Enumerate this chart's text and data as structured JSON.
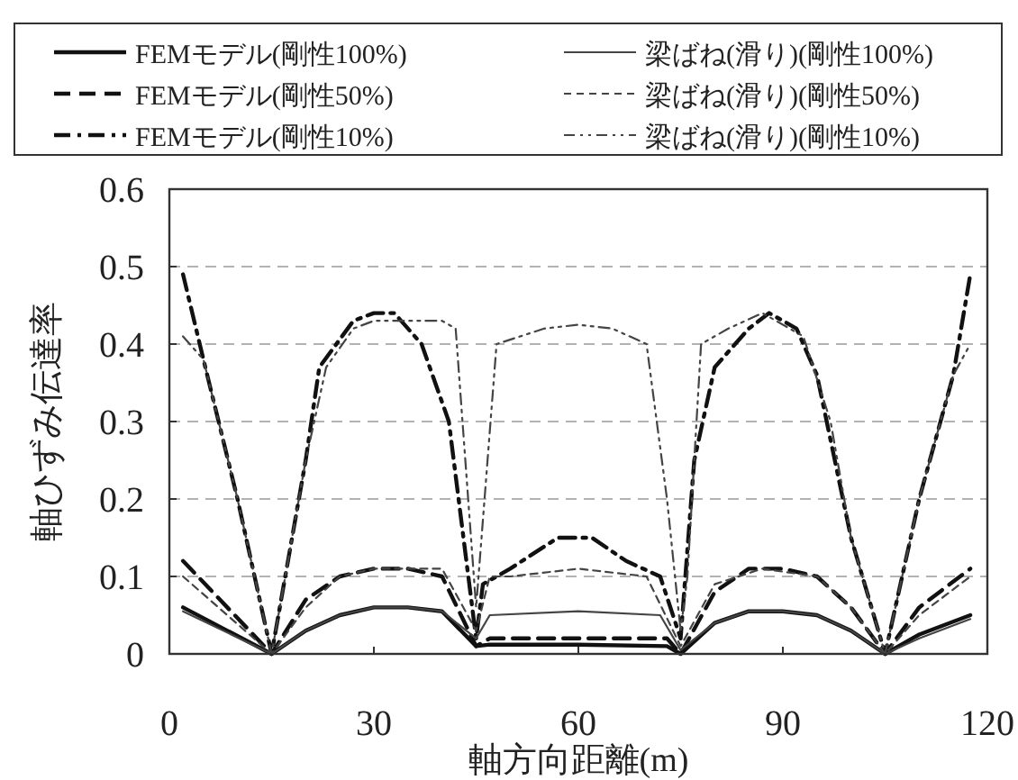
{
  "chart_data": {
    "type": "line",
    "xlabel": "軸方向距離(m)",
    "ylabel": "軸ひずみ伝達率",
    "xlim": [
      0,
      120
    ],
    "ylim": [
      0,
      0.6
    ],
    "xticks": [
      0,
      30,
      60,
      90,
      120
    ],
    "yticks": [
      {
        "value": 0,
        "label": "0"
      },
      0.1,
      0.2,
      0.3,
      0.4,
      0.5,
      0.6
    ],
    "grid": "y",
    "legend": "top",
    "series": [
      {
        "name": "FEMモデル(剛性100%)",
        "color": "#111111",
        "line_style": "solid",
        "x": [
          2,
          15,
          20,
          25,
          30,
          35,
          40,
          45,
          47,
          60,
          73,
          75,
          80,
          85,
          90,
          95,
          100,
          105,
          110,
          117.5
        ],
        "values": [
          0.06,
          0,
          0.03,
          0.05,
          0.06,
          0.06,
          0.055,
          0.01,
          0.012,
          0.012,
          0.01,
          0,
          0.04,
          0.055,
          0.055,
          0.05,
          0.03,
          0,
          0.025,
          0.05
        ]
      },
      {
        "name": "FEMモデル(剛性50%)",
        "color": "#111111",
        "line_style": "dashed",
        "x": [
          2,
          15,
          20,
          25,
          30,
          35,
          40,
          45,
          47,
          60,
          73,
          75,
          80,
          85,
          90,
          95,
          100,
          105,
          110,
          117.5
        ],
        "values": [
          0.12,
          0,
          0.07,
          0.1,
          0.11,
          0.11,
          0.1,
          0.01,
          0.02,
          0.02,
          0.02,
          0,
          0.08,
          0.11,
          0.11,
          0.1,
          0.06,
          0,
          0.06,
          0.11
        ]
      },
      {
        "name": "FEMモデル(剛性10%)",
        "color": "#111111",
        "line_style": "dashdot",
        "x": [
          2,
          5,
          10,
          15,
          20,
          22,
          27,
          30,
          33,
          37,
          41,
          45,
          46,
          50,
          57,
          62,
          67,
          72,
          75,
          77,
          80,
          85,
          88,
          92,
          95,
          100,
          105,
          110,
          115,
          117.5
        ],
        "values": [
          0.49,
          0.38,
          0.2,
          0,
          0.25,
          0.37,
          0.43,
          0.44,
          0.44,
          0.4,
          0.3,
          0.02,
          0.09,
          0.11,
          0.15,
          0.15,
          0.12,
          0.1,
          0.02,
          0.25,
          0.37,
          0.42,
          0.44,
          0.42,
          0.36,
          0.15,
          0,
          0.2,
          0.36,
          0.49
        ]
      },
      {
        "name": "梁ばね(滑り)(剛性100%)",
        "color": "#444444",
        "line_style": "solid",
        "x": [
          2,
          15,
          20,
          25,
          30,
          35,
          40,
          45,
          47,
          60,
          72,
          75,
          80,
          85,
          90,
          95,
          100,
          105,
          110,
          117.5
        ],
        "values": [
          0.055,
          0,
          0.03,
          0.05,
          0.06,
          0.06,
          0.055,
          0.02,
          0.05,
          0.055,
          0.05,
          0.005,
          0.04,
          0.055,
          0.055,
          0.05,
          0.03,
          0,
          0.02,
          0.045
        ]
      },
      {
        "name": "梁ばね(滑り)(剛性50%)",
        "color": "#444444",
        "line_style": "dotted",
        "x": [
          2,
          15,
          20,
          25,
          30,
          35,
          40,
          45,
          47,
          50,
          60,
          70,
          75,
          80,
          87,
          95,
          100,
          105,
          110,
          117.5
        ],
        "values": [
          0.1,
          0,
          0.06,
          0.1,
          0.11,
          0.11,
          0.11,
          0.03,
          0.1,
          0.1,
          0.11,
          0.1,
          0.01,
          0.09,
          0.11,
          0.1,
          0.06,
          0,
          0.05,
          0.1
        ]
      },
      {
        "name": "梁ばね(滑り)(剛性10%)",
        "color": "#444444",
        "line_style": "dashdotdot",
        "x": [
          2,
          5,
          10,
          15,
          20,
          23,
          27,
          30,
          35,
          40,
          42,
          45,
          48,
          55,
          60,
          65,
          70,
          73,
          75,
          76,
          78,
          82,
          87,
          93,
          97,
          100,
          105,
          110,
          115,
          117.5
        ],
        "values": [
          0.41,
          0.38,
          0.2,
          0,
          0.25,
          0.37,
          0.42,
          0.43,
          0.43,
          0.43,
          0.42,
          0.06,
          0.4,
          0.42,
          0.425,
          0.42,
          0.4,
          0.2,
          0.03,
          0.1,
          0.4,
          0.42,
          0.44,
          0.41,
          0.3,
          0.15,
          0,
          0.2,
          0.36,
          0.4
        ]
      }
    ]
  }
}
